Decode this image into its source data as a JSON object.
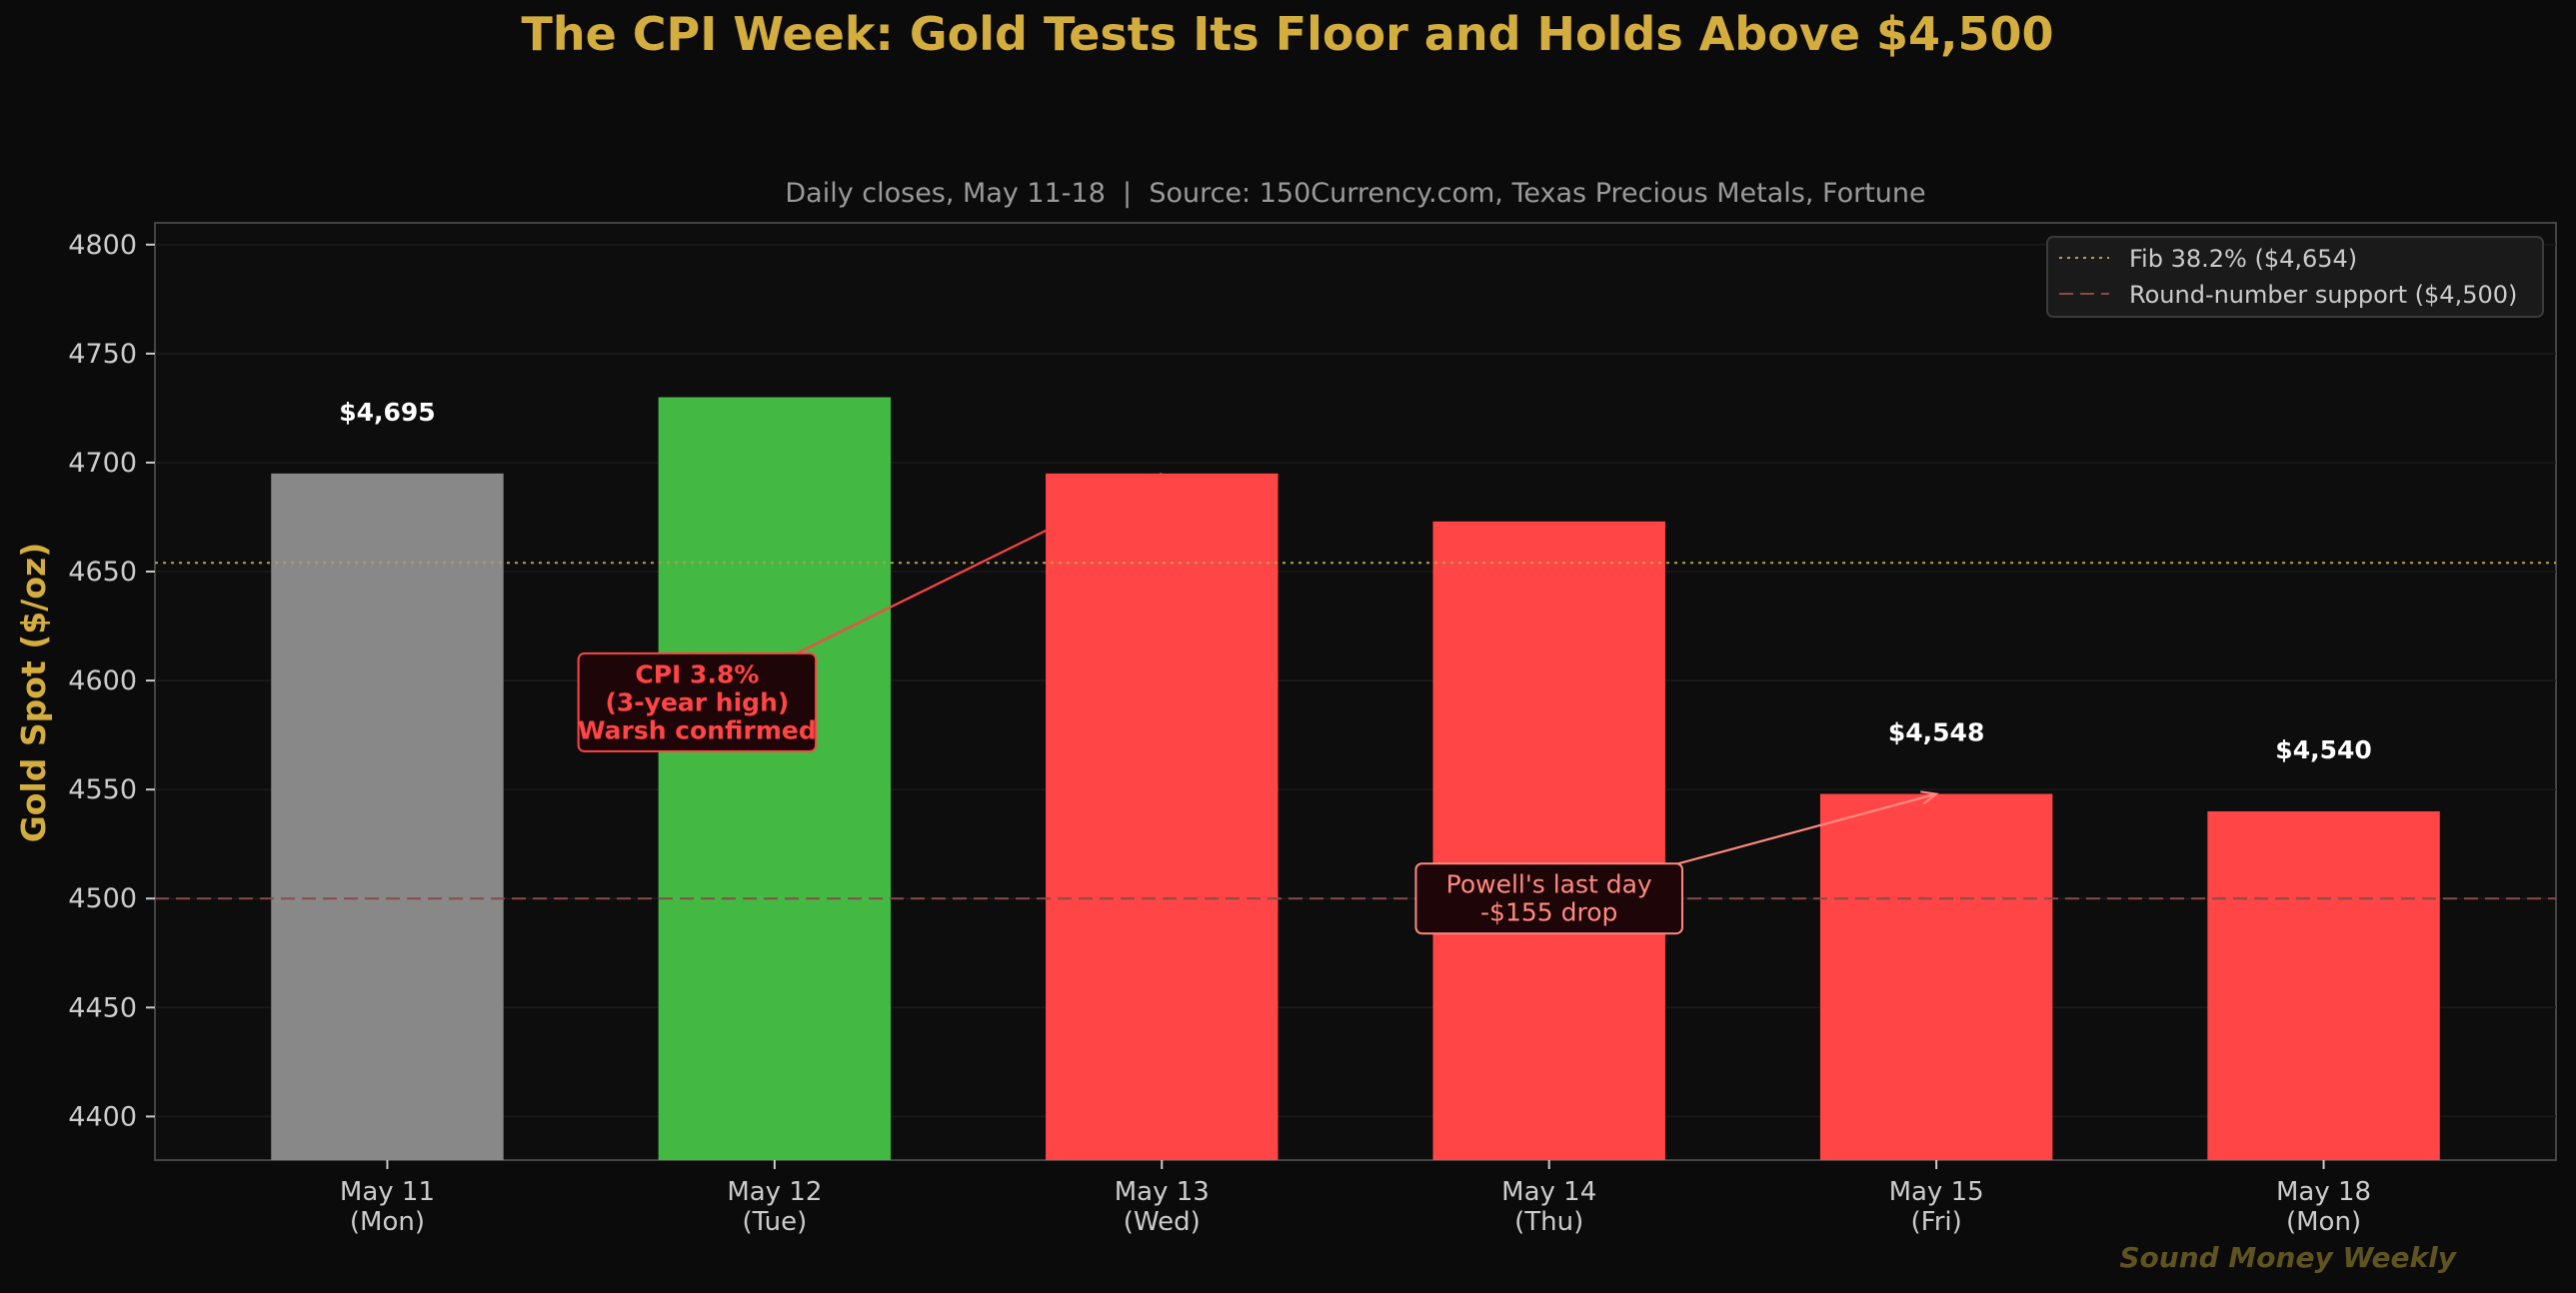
{
  "title": "The CPI Week: Gold Tests Its Floor and Holds Above $4,500",
  "subtitle": "Daily closes, May 11-18  |  Source: 150Currency.com, Texas Precious Metals, Fortune",
  "watermark": "Sound Money Weekly",
  "colors": {
    "background": "#0b0b0b",
    "title": "#d4ad3f",
    "neutral_bar": "#888888",
    "up_bar": "#43b843",
    "down_bar": "#ff4545",
    "fib_line": "#b8a24a",
    "support_line": "#8a4a4a",
    "text": "#cccccc"
  },
  "chart_data": {
    "type": "bar",
    "categories": [
      [
        "May 11",
        "(Mon)"
      ],
      [
        "May 12",
        "(Tue)"
      ],
      [
        "May 13",
        "(Wed)"
      ],
      [
        "May 14",
        "(Thu)"
      ],
      [
        "May 15",
        "(Fri)"
      ],
      [
        "May 18",
        "(Mon)"
      ]
    ],
    "values": [
      4695,
      4730,
      4695,
      4673,
      4548,
      4540
    ],
    "bar_colors": [
      "neutral",
      "up",
      "down",
      "down",
      "down",
      "down"
    ],
    "value_labels": [
      "$4,695",
      "",
      "",
      "",
      "$4,548",
      "$4,540"
    ],
    "ylabel": "Gold Spot ($/oz)",
    "ylim": [
      4380,
      4810
    ],
    "yticks": [
      4400,
      4450,
      4500,
      4550,
      4600,
      4650,
      4700,
      4750,
      4800
    ],
    "grid": true,
    "reference_lines": [
      {
        "label": "Fib 38.2% ($4,654)",
        "value": 4654,
        "style": "dotted",
        "color": "#b8a24a"
      },
      {
        "label": "Round-number support ($4,500)",
        "value": 4500,
        "style": "dashed",
        "color": "#8a4a4a"
      }
    ],
    "legend_position": "top-right",
    "annotations": [
      {
        "lines": [
          "CPI 3.8%",
          "(3-year high)",
          "Warsh confirmed"
        ],
        "target_index": 2,
        "target_value": 4695,
        "anchor_index": 0.8,
        "anchor_value": 4590,
        "color": "#ff4545",
        "bold": true
      },
      {
        "lines": [
          "Powell's last day",
          "-$155 drop"
        ],
        "target_index": 4,
        "target_value": 4548,
        "anchor_index": 3,
        "anchor_value": 4500,
        "color": "#ff8a80",
        "bold": false
      }
    ]
  }
}
